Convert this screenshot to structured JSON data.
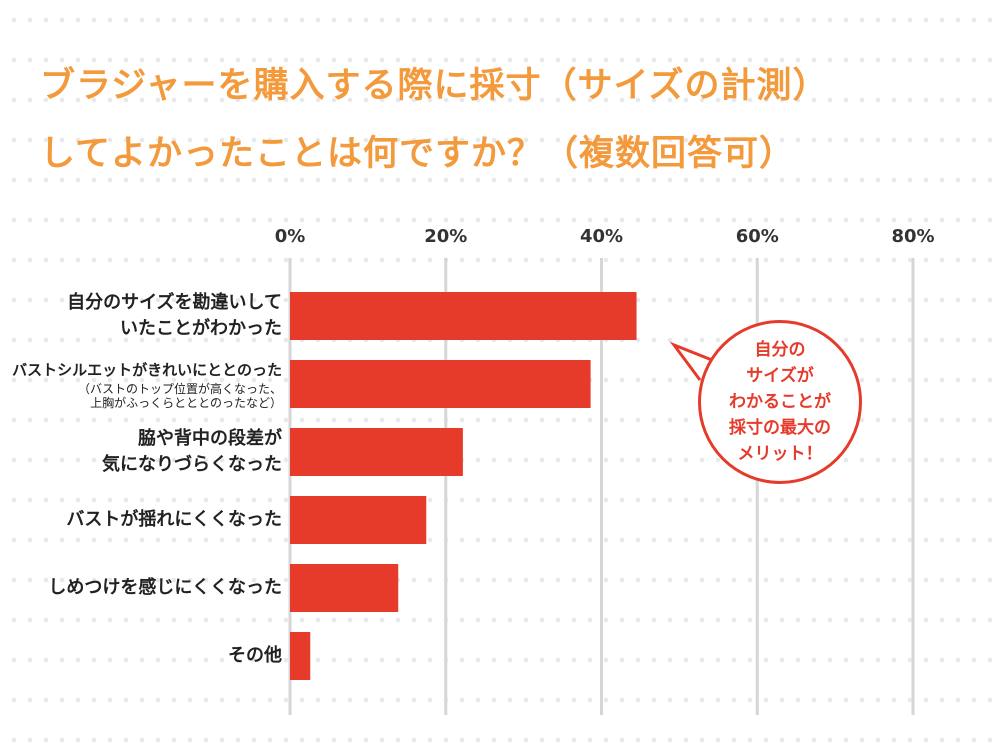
{
  "chart_data": {
    "type": "bar",
    "orientation": "horizontal",
    "title": "ブラジャーを購入する際に採寸（サイズの計測）してよかったことは何ですか？（複数回答可）",
    "categories": [
      "自分のサイズを勘違いしていたことがわかった",
      "バストシルエットがきれいにととのった",
      "脇や背中の段差が気になりづらくなった",
      "バストが揺れにくくなった",
      "しめつけを感じにくくなった",
      "その他"
    ],
    "category_lines": [
      [
        "自分のサイズを勘違いして",
        "いたことがわかった"
      ],
      [
        "バストシルエットがきれいにととのった"
      ],
      [
        "脇や背中の段差が",
        "気になりづらくなった"
      ],
      [
        "バストが揺れにくくなった"
      ],
      [
        "しめつけを感じにくくなった"
      ],
      [
        "その他"
      ]
    ],
    "category_notes": [
      "",
      "（バストのトップ位置が高くなった、\n上胸がふっくらとととのったなど）",
      "",
      "",
      "",
      ""
    ],
    "values": [
      44.5,
      38.6,
      22.2,
      17.5,
      13.9,
      2.6
    ],
    "xlim": [
      0,
      80
    ],
    "ticks": [
      "0%",
      "20%",
      "40%",
      "60%",
      "80%"
    ],
    "tick_values": [
      0,
      20,
      40,
      60,
      80
    ],
    "grid": true,
    "bar_color": "#e63a2b",
    "title_color": "#f39a3c",
    "annotation": "自分の\nサイズが\nわかることが\n採寸の最大の\nメリット！"
  }
}
